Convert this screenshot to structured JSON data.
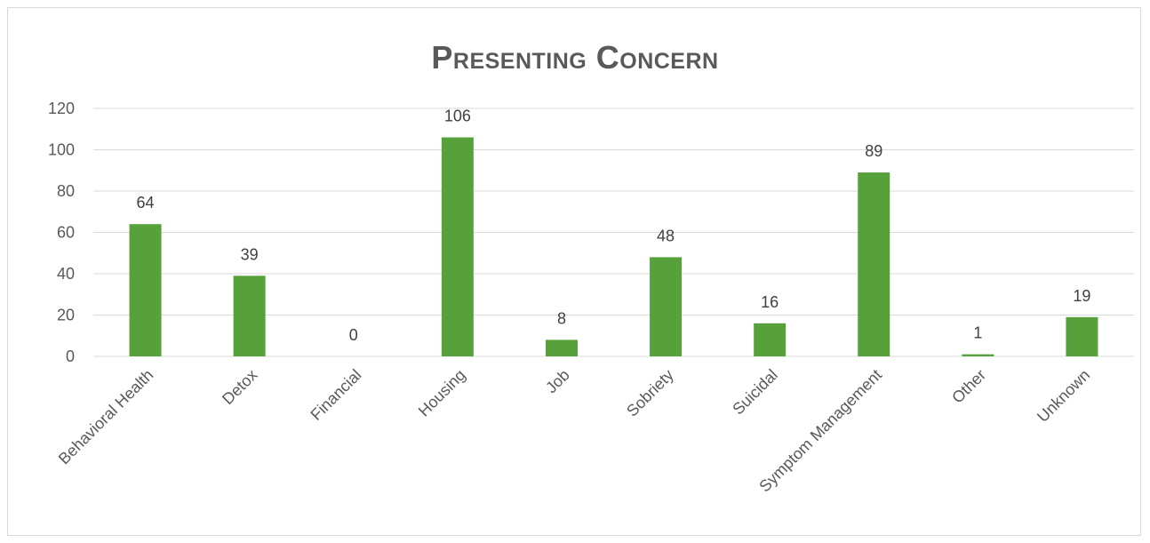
{
  "chart_data": {
    "type": "bar",
    "title": "Presenting Concern",
    "categories": [
      "Behavioral Health",
      "Detox",
      "Financial",
      "Housing",
      "Job",
      "Sobriety",
      "Suicidal",
      "Symptom Management",
      "Other",
      "Unknown"
    ],
    "values": [
      64,
      39,
      0,
      106,
      8,
      48,
      16,
      89,
      1,
      19
    ],
    "ylim": [
      0,
      120
    ],
    "yticks": [
      0,
      20,
      40,
      60,
      80,
      100,
      120
    ],
    "grid": true,
    "legend": "none",
    "data_labels": true,
    "bar_color": "#56a13a",
    "gridline_color": "#d9d9d9",
    "text_color": "#595959"
  }
}
